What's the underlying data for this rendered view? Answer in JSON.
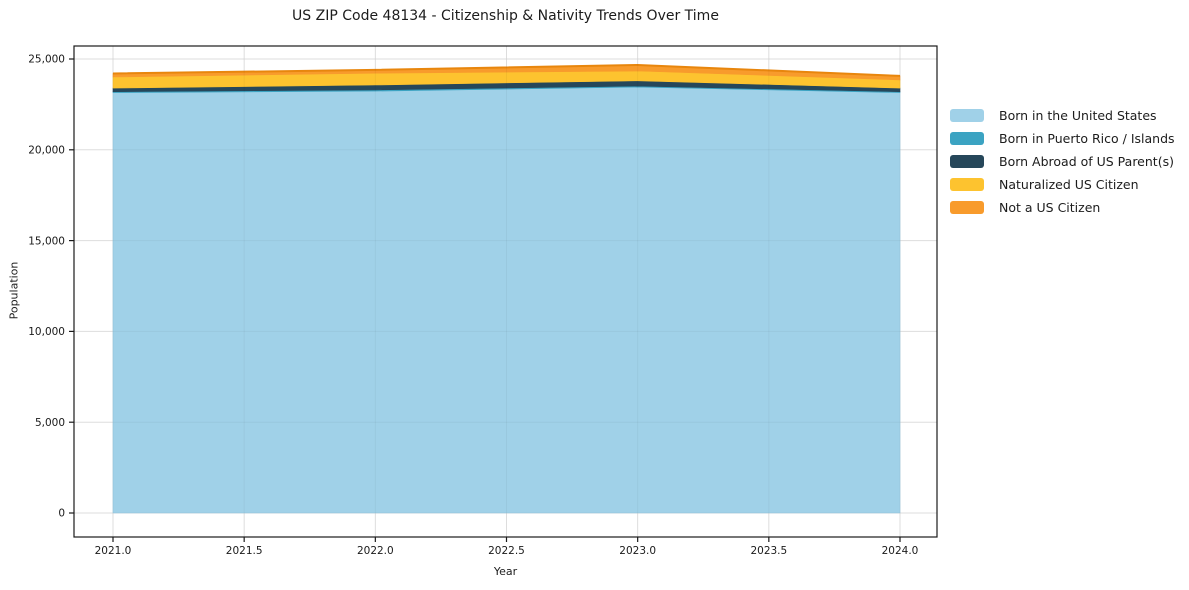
{
  "chart_data": {
    "type": "area",
    "stacked": true,
    "title": "US ZIP Code 48134 - Citizenship & Nativity Trends Over Time",
    "xlabel": "Year",
    "ylabel": "Population",
    "x": [
      2021,
      2022,
      2023,
      2024
    ],
    "series": [
      {
        "name": "Born in the United States",
        "color": "#A0D1E8",
        "values": [
          23150,
          23230,
          23450,
          23150
        ]
      },
      {
        "name": "Born in Puerto Rico / Islands",
        "color": "#3BA3C2",
        "values": [
          50,
          70,
          60,
          50
        ]
      },
      {
        "name": "Born Abroad of US Parent(s)",
        "color": "#26475A",
        "values": [
          200,
          270,
          290,
          200
        ]
      },
      {
        "name": "Naturalized US Citizen",
        "color": "#FDC32F",
        "values": [
          610,
          650,
          540,
          450
        ]
      },
      {
        "name": "Not a US Citizen",
        "color": "#F89B2C",
        "values": [
          190,
          180,
          330,
          220
        ]
      }
    ],
    "totals": [
      24200,
      24400,
      24670,
      24070
    ],
    "top_edge_color": "#E8860D",
    "xticks": {
      "values": [
        2021.0,
        2021.5,
        2022.0,
        2022.5,
        2023.0,
        2023.5,
        2024.0
      ],
      "labels": [
        "2021.0",
        "2021.5",
        "2022.0",
        "2022.5",
        "2023.0",
        "2023.5",
        "2024.0"
      ]
    },
    "yticks": {
      "values": [
        0,
        5000,
        10000,
        15000,
        20000,
        25000
      ],
      "labels": [
        "0",
        "5,000",
        "10,000",
        "15,000",
        "20,000",
        "25,000"
      ]
    },
    "xlim": [
      2020.85,
      2024.15
    ],
    "ylim": [
      0,
      25700
    ],
    "grid": true,
    "grid_color": "#e7e7e7",
    "frame_color": "#1a1a1a",
    "legend_position": "right-outside"
  }
}
